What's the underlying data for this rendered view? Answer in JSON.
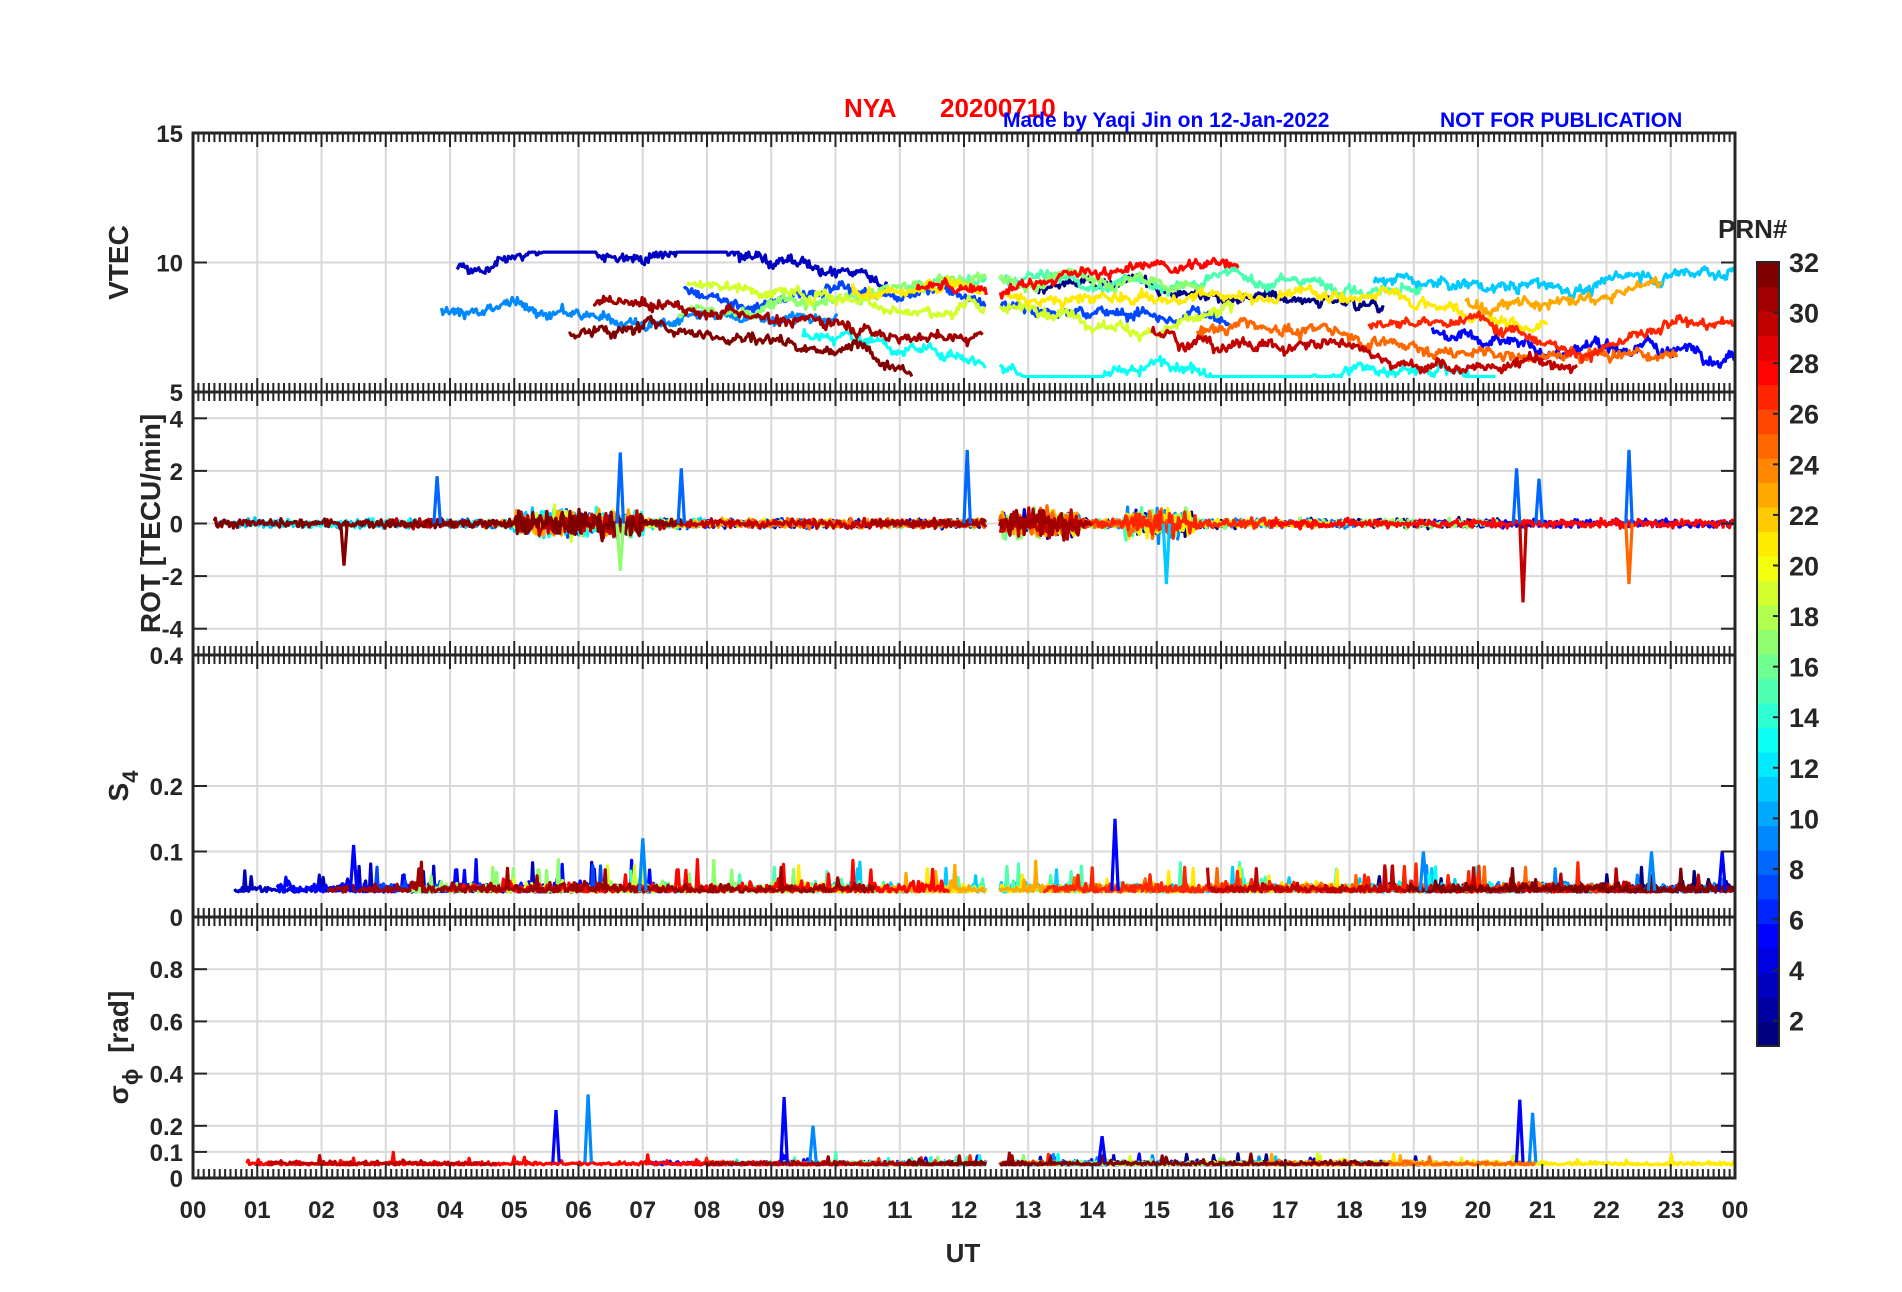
{
  "header": {
    "station": "NYA",
    "date": "20200710",
    "credit": "Made by Yaqi Jin on 12-Jan-2022",
    "notice": "NOT FOR PUBLICATION"
  },
  "colors": {
    "title": "#ff0000",
    "credit": "#0000ff",
    "notice": "#0000ff",
    "grid": "#d9d9d9",
    "axis": "#262626"
  },
  "colorbar": {
    "title": "PRN#",
    "colormap": "jet",
    "range": [
      1,
      32
    ],
    "ticks": [
      2,
      4,
      6,
      8,
      10,
      12,
      14,
      16,
      18,
      20,
      22,
      24,
      26,
      28,
      30,
      32
    ]
  },
  "chart_data": [
    {
      "type": "line",
      "ylabel": "VTEC",
      "ylim": [
        5,
        15
      ],
      "yticks": [
        5,
        10,
        15
      ],
      "grid": true,
      "series_description_values": {
        "mean_level": 8.3,
        "spread": 1.5
      },
      "x_gap": [
        12.35,
        12.55
      ],
      "series_count": 14
    },
    {
      "type": "line",
      "ylabel": "ROT [TECU/min]",
      "ylim": [
        -5,
        5
      ],
      "yticks": [
        -4,
        -2,
        0,
        2,
        4
      ],
      "grid": true,
      "spikes": [
        {
          "x": 6.65,
          "y": 2.7
        },
        {
          "x": 6.65,
          "y": -1.8
        },
        {
          "x": 7.6,
          "y": 2.1
        },
        {
          "x": 12.05,
          "y": 2.8
        },
        {
          "x": 15.15,
          "y": -2.3
        },
        {
          "x": 20.6,
          "y": 2.1
        },
        {
          "x": 20.7,
          "y": -3.0
        },
        {
          "x": 20.95,
          "y": 1.7
        },
        {
          "x": 22.35,
          "y": 2.8
        },
        {
          "x": 22.35,
          "y": -2.3
        },
        {
          "x": 2.35,
          "y": -1.6
        },
        {
          "x": 3.8,
          "y": 1.8
        }
      ],
      "x_gap": [
        12.35,
        12.55
      ],
      "series_count": 14
    },
    {
      "type": "line",
      "ylabel": "S",
      "ylabel_sub": "4",
      "ylim": [
        0,
        0.4
      ],
      "yticks": [
        0,
        0.1,
        0.2
      ],
      "ytick_labels": [
        "0",
        "0.1",
        "0.2"
      ],
      "top_tick_label": "0.4",
      "grid": true,
      "spikes": [
        {
          "x": 2.5,
          "y": 0.11
        },
        {
          "x": 7.0,
          "y": 0.12
        },
        {
          "x": 14.35,
          "y": 0.15
        },
        {
          "x": 19.15,
          "y": 0.1
        },
        {
          "x": 23.8,
          "y": 0.1
        },
        {
          "x": 22.7,
          "y": 0.1
        }
      ],
      "x_gap": [
        12.35,
        12.55
      ],
      "series_count": 14
    },
    {
      "type": "line",
      "ylabel": "σ",
      "ylabel_sub": "ϕ",
      "ylabel_unit": "[rad]",
      "ylim": [
        0,
        1
      ],
      "yticks": [
        0,
        0.1,
        0.2,
        0.4,
        0.6,
        0.8
      ],
      "ytick_labels": [
        "0",
        "0.1",
        "0.2",
        "0.4",
        "0.6",
        "0.8"
      ],
      "grid": true,
      "spikes": [
        {
          "x": 5.65,
          "y": 0.26
        },
        {
          "x": 6.15,
          "y": 0.32
        },
        {
          "x": 9.2,
          "y": 0.31
        },
        {
          "x": 9.65,
          "y": 0.2
        },
        {
          "x": 20.65,
          "y": 0.3
        },
        {
          "x": 20.85,
          "y": 0.25
        },
        {
          "x": 14.15,
          "y": 0.16
        }
      ],
      "x_gap": [
        12.35,
        12.55
      ],
      "series_count": 14
    }
  ],
  "xaxis": {
    "label": "UT",
    "range": [
      0,
      24
    ],
    "tick_labels": [
      "00",
      "01",
      "02",
      "03",
      "04",
      "05",
      "06",
      "07",
      "08",
      "09",
      "10",
      "11",
      "12",
      "13",
      "14",
      "15",
      "16",
      "17",
      "18",
      "19",
      "20",
      "21",
      "22",
      "23",
      "00"
    ]
  }
}
